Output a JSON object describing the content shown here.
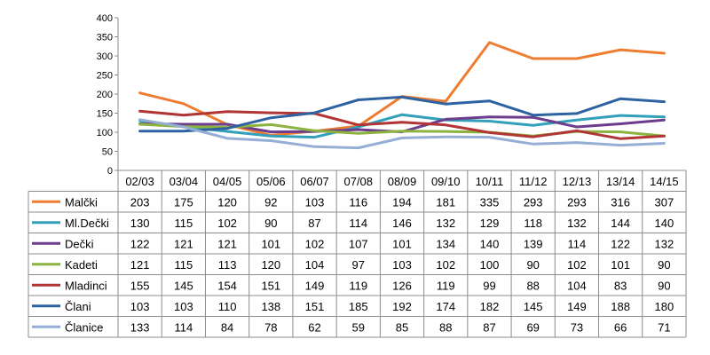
{
  "chart_data": {
    "type": "line",
    "title": "",
    "xlabel": "",
    "ylabel": "",
    "ylim": [
      0,
      400
    ],
    "yticks": [
      0,
      50,
      100,
      150,
      200,
      250,
      300,
      350,
      400
    ],
    "grid": false,
    "legend": "data-table-left",
    "categories": [
      "02/03",
      "03/04",
      "04/05",
      "05/06",
      "06/07",
      "07/08",
      "08/09",
      "09/10",
      "10/11",
      "11/12",
      "12/13",
      "13/14",
      "14/15"
    ],
    "series": [
      {
        "name": "Malčki",
        "color": "#ED7D31",
        "values": [
          203,
          175,
          120,
          92,
          103,
          116,
          194,
          181,
          335,
          293,
          293,
          316,
          307
        ]
      },
      {
        "name": "Ml.Dečki",
        "color": "#31A0B8",
        "values": [
          130,
          115,
          102,
          90,
          87,
          114,
          146,
          132,
          129,
          118,
          132,
          144,
          140
        ]
      },
      {
        "name": "Dečki",
        "color": "#6C3D8E",
        "values": [
          122,
          121,
          121,
          101,
          102,
          107,
          101,
          134,
          140,
          139,
          114,
          122,
          132
        ]
      },
      {
        "name": "Kadeti",
        "color": "#8CB33F",
        "values": [
          121,
          115,
          113,
          120,
          104,
          97,
          103,
          102,
          100,
          90,
          102,
          101,
          90
        ]
      },
      {
        "name": "Mladinci",
        "color": "#B23535",
        "values": [
          155,
          145,
          154,
          151,
          149,
          119,
          126,
          119,
          99,
          88,
          104,
          83,
          90
        ]
      },
      {
        "name": "Člani",
        "color": "#2E62A0",
        "values": [
          103,
          103,
          110,
          138,
          151,
          185,
          192,
          174,
          182,
          145,
          149,
          188,
          180
        ]
      },
      {
        "name": "Članice",
        "color": "#94AED5",
        "values": [
          133,
          114,
          84,
          78,
          62,
          59,
          85,
          88,
          87,
          69,
          73,
          66,
          71
        ]
      }
    ]
  }
}
